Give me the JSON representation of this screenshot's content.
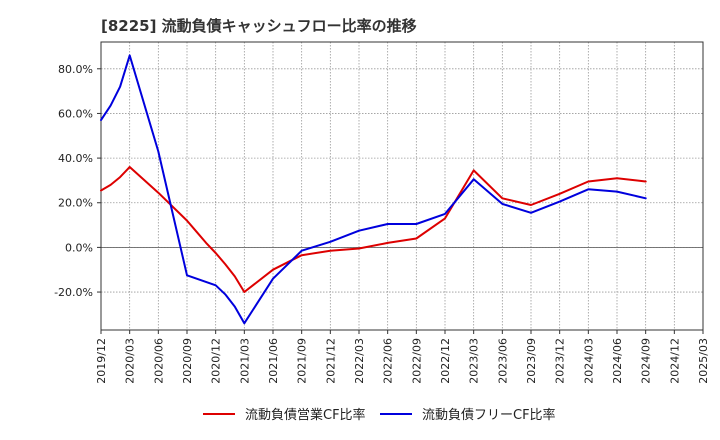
{
  "chart_data": {
    "type": "line",
    "title": "[8225]  流動負債キャッシュフロー比率の推移",
    "xlabel": "",
    "ylabel": "",
    "x": [
      "2019/12",
      "2020/03",
      "2020/06",
      "2020/09",
      "2020/12",
      "2021/03",
      "2021/06",
      "2021/09",
      "2021/12",
      "2022/03",
      "2022/06",
      "2022/09",
      "2022/12",
      "2023/03",
      "2023/06",
      "2023/09",
      "2023/12",
      "2024/03",
      "2024/06",
      "2024/09",
      "2024/12",
      "2025/03"
    ],
    "x_tick_labels": [
      "2019/12",
      "2020/03",
      "2020/06",
      "2020/09",
      "2020/12",
      "2021/03",
      "2021/06",
      "2021/09",
      "2021/12",
      "2022/03",
      "2022/06",
      "2022/09",
      "2022/12",
      "2023/03",
      "2023/06",
      "2023/09",
      "2023/12",
      "2024/03",
      "2024/06",
      "2024/09",
      "2024/12",
      "2025/03"
    ],
    "y_ticks": [
      80,
      60,
      40,
      20,
      0,
      -20
    ],
    "y_tick_labels": [
      "80.0%",
      "60.0%",
      "40.0%",
      "20.0%",
      "0.0%",
      "-20.0%"
    ],
    "ylim": [
      -37,
      92
    ],
    "grid": true,
    "legend_position": "bottom",
    "series": [
      {
        "name": "流動負債営業CF比率",
        "color": "#dd0000",
        "points": [
          [
            "2019/12",
            25.5
          ],
          [
            "2020/01",
            28
          ],
          [
            "2020/02",
            31.5
          ],
          [
            "2020/03",
            36
          ],
          [
            "2020/06",
            24.5
          ],
          [
            "2020/09",
            12
          ],
          [
            "2020/10",
            7
          ],
          [
            "2020/11",
            2
          ],
          [
            "2020/12",
            -2.5
          ],
          [
            "2021/01",
            -7.5
          ],
          [
            "2021/02",
            -13
          ],
          [
            "2021/03",
            -20
          ],
          [
            "2021/06",
            -10
          ],
          [
            "2021/09",
            -3.5
          ],
          [
            "2021/12",
            -1.5
          ],
          [
            "2022/03",
            -0.5
          ],
          [
            "2022/06",
            2
          ],
          [
            "2022/09",
            4
          ],
          [
            "2022/12",
            13
          ],
          [
            "2023/03",
            34.5
          ],
          [
            "2023/06",
            22
          ],
          [
            "2023/09",
            19
          ],
          [
            "2023/12",
            24
          ],
          [
            "2024/03",
            29.5
          ],
          [
            "2024/06",
            31
          ],
          [
            "2024/09",
            29.5
          ]
        ]
      },
      {
        "name": "流動負債フリーCF比率",
        "color": "#0000dd",
        "points": [
          [
            "2019/12",
            57
          ],
          [
            "2020/01",
            63.5
          ],
          [
            "2020/02",
            72
          ],
          [
            "2020/03",
            86
          ],
          [
            "2020/06",
            43
          ],
          [
            "2020/09",
            -12.5
          ],
          [
            "2020/12",
            -17
          ],
          [
            "2021/01",
            -21
          ],
          [
            "2021/02",
            -26.5
          ],
          [
            "2021/03",
            -34
          ],
          [
            "2021/06",
            -14
          ],
          [
            "2021/09",
            -1.5
          ],
          [
            "2021/12",
            2.5
          ],
          [
            "2022/03",
            7.5
          ],
          [
            "2022/06",
            10.5
          ],
          [
            "2022/09",
            10.5
          ],
          [
            "2022/12",
            15
          ],
          [
            "2023/03",
            30.5
          ],
          [
            "2023/06",
            19.5
          ],
          [
            "2023/09",
            15.5
          ],
          [
            "2023/12",
            20.5
          ],
          [
            "2024/03",
            26
          ],
          [
            "2024/06",
            25
          ],
          [
            "2024/09",
            22
          ]
        ]
      }
    ]
  }
}
